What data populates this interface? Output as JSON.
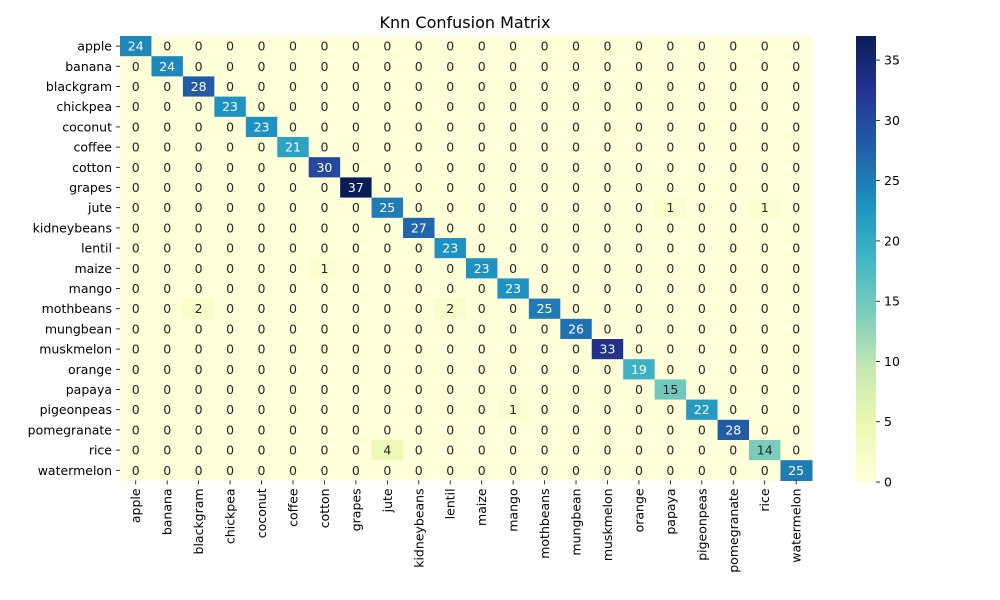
{
  "chart_data": {
    "type": "heatmap",
    "title": "Knn Confusion Matrix",
    "row_labels": [
      "apple",
      "banana",
      "blackgram",
      "chickpea",
      "coconut",
      "coffee",
      "cotton",
      "grapes",
      "jute",
      "kidneybeans",
      "lentil",
      "maize",
      "mango",
      "mothbeans",
      "mungbean",
      "muskmelon",
      "orange",
      "papaya",
      "pigeonpeas",
      "pomegranate",
      "rice",
      "watermelon"
    ],
    "col_labels": [
      "apple",
      "banana",
      "blackgram",
      "chickpea",
      "coconut",
      "coffee",
      "cotton",
      "grapes",
      "jute",
      "kidneybeans",
      "lentil",
      "maize",
      "mango",
      "mothbeans",
      "mungbean",
      "muskmelon",
      "orange",
      "papaya",
      "pigeonpeas",
      "pomegranate",
      "rice",
      "watermelon"
    ],
    "matrix": [
      [
        24,
        0,
        0,
        0,
        0,
        0,
        0,
        0,
        0,
        0,
        0,
        0,
        0,
        0,
        0,
        0,
        0,
        0,
        0,
        0,
        0,
        0
      ],
      [
        0,
        24,
        0,
        0,
        0,
        0,
        0,
        0,
        0,
        0,
        0,
        0,
        0,
        0,
        0,
        0,
        0,
        0,
        0,
        0,
        0,
        0
      ],
      [
        0,
        0,
        28,
        0,
        0,
        0,
        0,
        0,
        0,
        0,
        0,
        0,
        0,
        0,
        0,
        0,
        0,
        0,
        0,
        0,
        0,
        0
      ],
      [
        0,
        0,
        0,
        23,
        0,
        0,
        0,
        0,
        0,
        0,
        0,
        0,
        0,
        0,
        0,
        0,
        0,
        0,
        0,
        0,
        0,
        0
      ],
      [
        0,
        0,
        0,
        0,
        23,
        0,
        0,
        0,
        0,
        0,
        0,
        0,
        0,
        0,
        0,
        0,
        0,
        0,
        0,
        0,
        0,
        0
      ],
      [
        0,
        0,
        0,
        0,
        0,
        21,
        0,
        0,
        0,
        0,
        0,
        0,
        0,
        0,
        0,
        0,
        0,
        0,
        0,
        0,
        0,
        0
      ],
      [
        0,
        0,
        0,
        0,
        0,
        0,
        30,
        0,
        0,
        0,
        0,
        0,
        0,
        0,
        0,
        0,
        0,
        0,
        0,
        0,
        0,
        0
      ],
      [
        0,
        0,
        0,
        0,
        0,
        0,
        0,
        37,
        0,
        0,
        0,
        0,
        0,
        0,
        0,
        0,
        0,
        0,
        0,
        0,
        0,
        0
      ],
      [
        0,
        0,
        0,
        0,
        0,
        0,
        0,
        0,
        25,
        0,
        0,
        0,
        0,
        0,
        0,
        0,
        0,
        1,
        0,
        0,
        1,
        0
      ],
      [
        0,
        0,
        0,
        0,
        0,
        0,
        0,
        0,
        0,
        27,
        0,
        0,
        0,
        0,
        0,
        0,
        0,
        0,
        0,
        0,
        0,
        0
      ],
      [
        0,
        0,
        0,
        0,
        0,
        0,
        0,
        0,
        0,
        0,
        23,
        0,
        0,
        0,
        0,
        0,
        0,
        0,
        0,
        0,
        0,
        0
      ],
      [
        0,
        0,
        0,
        0,
        0,
        0,
        1,
        0,
        0,
        0,
        0,
        23,
        0,
        0,
        0,
        0,
        0,
        0,
        0,
        0,
        0,
        0
      ],
      [
        0,
        0,
        0,
        0,
        0,
        0,
        0,
        0,
        0,
        0,
        0,
        0,
        23,
        0,
        0,
        0,
        0,
        0,
        0,
        0,
        0,
        0
      ],
      [
        0,
        0,
        2,
        0,
        0,
        0,
        0,
        0,
        0,
        0,
        2,
        0,
        0,
        25,
        0,
        0,
        0,
        0,
        0,
        0,
        0,
        0
      ],
      [
        0,
        0,
        0,
        0,
        0,
        0,
        0,
        0,
        0,
        0,
        0,
        0,
        0,
        0,
        26,
        0,
        0,
        0,
        0,
        0,
        0,
        0
      ],
      [
        0,
        0,
        0,
        0,
        0,
        0,
        0,
        0,
        0,
        0,
        0,
        0,
        0,
        0,
        0,
        33,
        0,
        0,
        0,
        0,
        0,
        0
      ],
      [
        0,
        0,
        0,
        0,
        0,
        0,
        0,
        0,
        0,
        0,
        0,
        0,
        0,
        0,
        0,
        0,
        19,
        0,
        0,
        0,
        0,
        0
      ],
      [
        0,
        0,
        0,
        0,
        0,
        0,
        0,
        0,
        0,
        0,
        0,
        0,
        0,
        0,
        0,
        0,
        0,
        15,
        0,
        0,
        0,
        0
      ],
      [
        0,
        0,
        0,
        0,
        0,
        0,
        0,
        0,
        0,
        0,
        0,
        0,
        1,
        0,
        0,
        0,
        0,
        0,
        22,
        0,
        0,
        0
      ],
      [
        0,
        0,
        0,
        0,
        0,
        0,
        0,
        0,
        0,
        0,
        0,
        0,
        0,
        0,
        0,
        0,
        0,
        0,
        0,
        28,
        0,
        0
      ],
      [
        0,
        0,
        0,
        0,
        0,
        0,
        0,
        0,
        4,
        0,
        0,
        0,
        0,
        0,
        0,
        0,
        0,
        0,
        0,
        0,
        14,
        0
      ],
      [
        0,
        0,
        0,
        0,
        0,
        0,
        0,
        0,
        0,
        0,
        0,
        0,
        0,
        0,
        0,
        0,
        0,
        0,
        0,
        0,
        0,
        25
      ]
    ],
    "colormap": "YlGnBu",
    "vmin": 0,
    "vmax": 37,
    "colorbar_ticks": [
      "0",
      "5",
      "10",
      "15",
      "20",
      "25",
      "30",
      "35"
    ]
  }
}
